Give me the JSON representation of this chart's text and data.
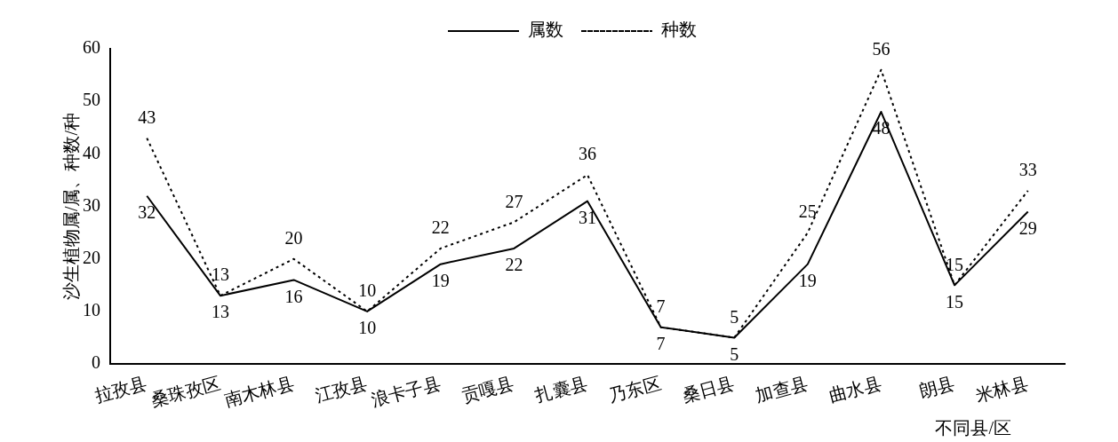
{
  "chart_data": {
    "type": "line",
    "xlabel": "不同县/区",
    "ylabel": "沙生植物属/属、种数/种",
    "categories": [
      "拉孜县",
      "桑珠孜区",
      "南木林县",
      "江孜县",
      "浪卡子县",
      "贡嘎县",
      "扎囊县",
      "乃东区",
      "桑日县",
      "加查县",
      "曲水县",
      "朗县",
      "米林县"
    ],
    "series": [
      {
        "name": "属数",
        "color": "#000000",
        "line_style": "solid",
        "values": [
          32,
          13,
          16,
          10,
          19,
          22,
          31,
          7,
          5,
          19,
          48,
          15,
          29
        ]
      },
      {
        "name": "种数",
        "color": "#000000",
        "line_style": "dotted",
        "values": [
          43,
          13,
          20,
          10,
          22,
          27,
          36,
          7,
          5,
          25,
          56,
          15,
          33
        ]
      }
    ],
    "ylim": [
      0,
      60
    ],
    "yticks": [
      0,
      10,
      20,
      30,
      40,
      50,
      60
    ],
    "grid": false,
    "legend": "top",
    "marker": "none",
    "data_labels": true
  }
}
